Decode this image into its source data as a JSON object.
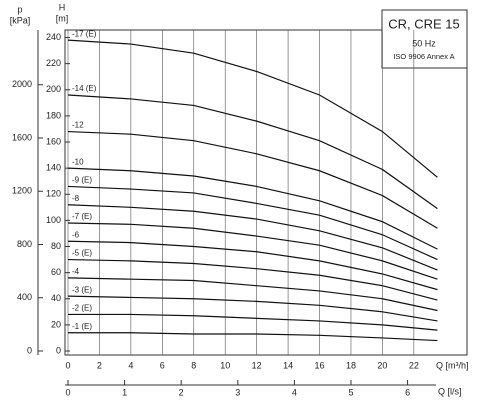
{
  "chart_data": {
    "type": "line",
    "box": {
      "title": "CR, CRE 15",
      "frequency": "50 Hz",
      "standard": "ISO 9906 Annex A"
    },
    "ylabel": {
      "symbol": "H",
      "unit": "[m]"
    },
    "y2label": {
      "symbol": "p",
      "unit": "[kPa]"
    },
    "xlabel": "Q [m³/h]",
    "x2label": "Q [l/s]",
    "xlim": [
      0,
      25
    ],
    "xticks": [
      0,
      2,
      4,
      6,
      8,
      10,
      12,
      14,
      16,
      18,
      20,
      22
    ],
    "x2lim": [
      0,
      6.944
    ],
    "x2ticks": [
      0,
      1,
      2,
      3,
      4,
      5,
      6
    ],
    "ylim": [
      0,
      245
    ],
    "yticks": [
      0,
      20,
      40,
      60,
      80,
      100,
      120,
      140,
      160,
      180,
      200,
      220,
      240
    ],
    "y2lim": [
      0,
      2403.45
    ],
    "y2ticks": [
      0,
      400,
      800,
      1200,
      1600,
      2000
    ],
    "xgrid": true,
    "x": [
      0,
      4,
      8,
      12,
      16,
      20,
      23.5
    ],
    "series": [
      {
        "name": "-17 (E)",
        "color": "#111",
        "values": [
          238,
          235,
          228,
          214,
          196,
          168,
          133
        ]
      },
      {
        "name": "-14 (E)",
        "color": "#111",
        "values": [
          196,
          193,
          188,
          176,
          161,
          139,
          109
        ]
      },
      {
        "name": "-12",
        "color": "#111",
        "values": [
          168,
          166,
          161,
          151,
          138,
          119,
          94
        ]
      },
      {
        "name": "-10",
        "color": "#111",
        "values": [
          140,
          138,
          134,
          126,
          115,
          99,
          78
        ]
      },
      {
        "name": "-9 (E)",
        "color": "#111",
        "values": [
          126,
          124,
          121,
          113,
          104,
          89,
          70
        ]
      },
      {
        "name": "-8",
        "color": "#111",
        "values": [
          112,
          110,
          107,
          101,
          92,
          79,
          62
        ]
      },
      {
        "name": "-7 (E)",
        "color": "#111",
        "values": [
          98,
          97,
          94,
          88,
          81,
          69,
          55
        ]
      },
      {
        "name": "-6",
        "color": "#111",
        "values": [
          84,
          83,
          80,
          76,
          69,
          59,
          47
        ]
      },
      {
        "name": "-5 (E)",
        "color": "#111",
        "values": [
          70,
          69,
          67,
          63,
          58,
          50,
          39
        ]
      },
      {
        "name": "-4",
        "color": "#111",
        "values": [
          56,
          55,
          54,
          50,
          46,
          40,
          31
        ]
      },
      {
        "name": "-3 (E)",
        "color": "#111",
        "values": [
          42,
          41,
          40,
          38,
          35,
          30,
          23
        ]
      },
      {
        "name": "-2 (E)",
        "color": "#111",
        "values": [
          28,
          28,
          27,
          25,
          23,
          20,
          16
        ]
      },
      {
        "name": "-1 (E)",
        "color": "#111",
        "values": [
          14,
          14,
          13,
          13,
          12,
          10,
          8
        ]
      }
    ]
  }
}
